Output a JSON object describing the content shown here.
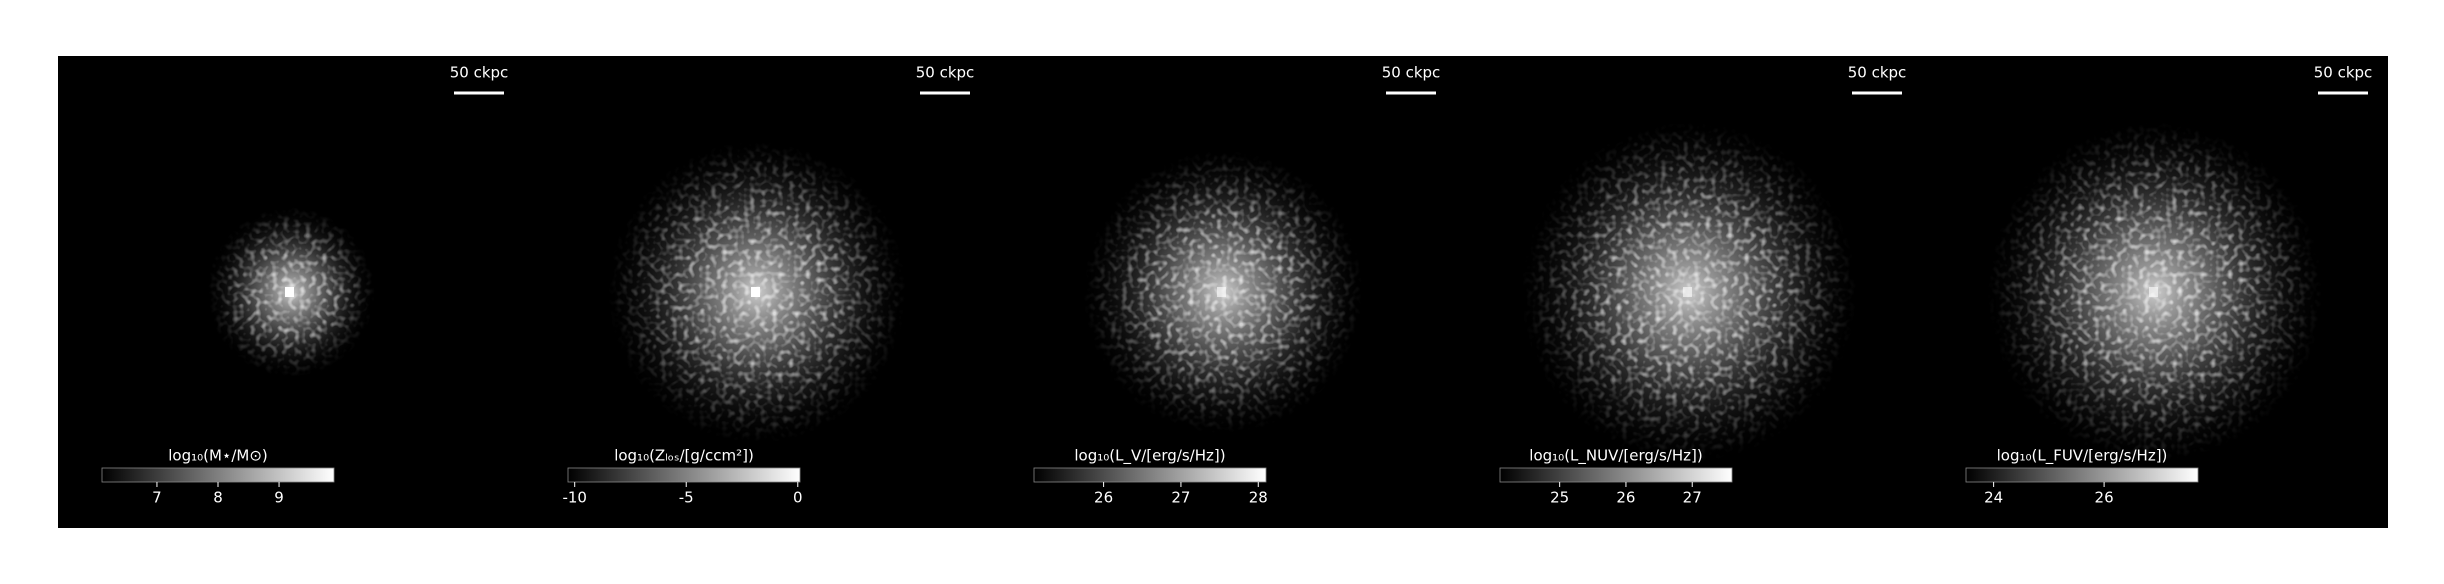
{
  "chart_data": [
    {
      "type": "image",
      "scalebar": "50 ckpc",
      "colorbar": {
        "label": "log₁₀(M⋆/M⊙)",
        "lim": [
          6.1,
          9.9
        ],
        "ticks": [
          7,
          8,
          9
        ]
      }
    },
    {
      "type": "image",
      "scalebar": "50 ckpc",
      "colorbar": {
        "label": "log₁₀(Zₗₒₛ/[g/ccm²])",
        "lim": [
          -10.3,
          0.1
        ],
        "ticks": [
          -10,
          -5,
          0
        ]
      }
    },
    {
      "type": "image",
      "scalebar": "50 ckpc",
      "colorbar": {
        "label": "log₁₀(L_V/[erg/s/Hz])",
        "lim": [
          25.1,
          28.1
        ],
        "ticks": [
          26,
          27,
          28
        ]
      }
    },
    {
      "type": "image",
      "scalebar": "50 ckpc",
      "colorbar": {
        "label": "log₁₀(L_NUV/[erg/s/Hz])",
        "lim": [
          24.1,
          27.6
        ],
        "ticks": [
          25,
          26,
          27
        ]
      }
    },
    {
      "type": "image",
      "scalebar": "50 ckpc",
      "colorbar": {
        "label": "log₁₀(L_FUV/[erg/s/Hz])",
        "lim": [
          23.5,
          27.7
        ],
        "ticks": [
          24,
          26
        ]
      }
    }
  ]
}
